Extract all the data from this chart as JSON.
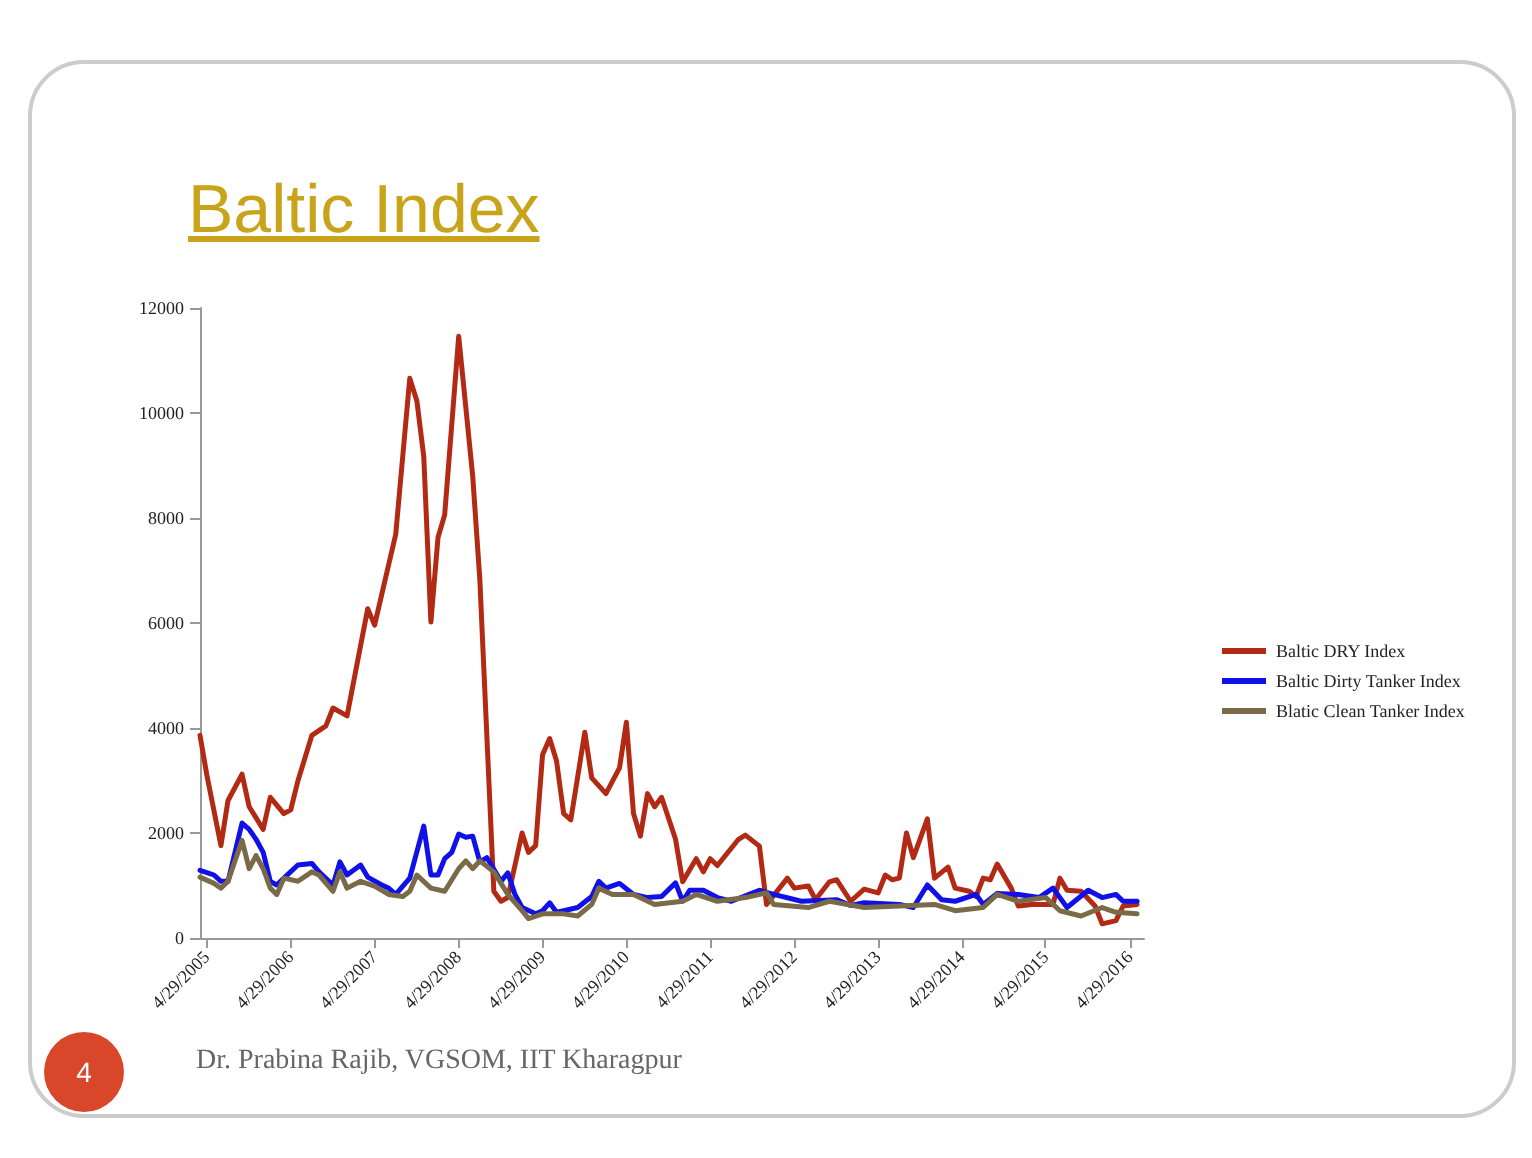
{
  "chart_data": {
    "type": "line",
    "title": "Baltic Index",
    "annotations": [
      "4",
      "Dr. Prabina Rajib, VGSOM, IIT Kharagpur"
    ],
    "series": [
      {
        "name": "Baltic DRY Index",
        "color": "#b22a14",
        "x": [
          "2005-04",
          "2005-05",
          "2005-07",
          "2005-08",
          "2005-10",
          "2005-11",
          "2006-01",
          "2006-02",
          "2006-04",
          "2006-05",
          "2006-06",
          "2006-08",
          "2006-10",
          "2006-11",
          "2007-01",
          "2007-04",
          "2007-05",
          "2007-08",
          "2007-10",
          "2007-11",
          "2007-12",
          "2008-01",
          "2008-02",
          "2008-03",
          "2008-05",
          "2008-07",
          "2008-08",
          "2008-10",
          "2008-11",
          "2008-12",
          "2009-02",
          "2009-03",
          "2009-04",
          "2009-05",
          "2009-06",
          "2009-07",
          "2009-08",
          "2009-09",
          "2009-11",
          "2009-12",
          "2010-02",
          "2010-04",
          "2010-05",
          "2010-06",
          "2010-07",
          "2010-08",
          "2010-09",
          "2010-10",
          "2010-12",
          "2011-01",
          "2011-03",
          "2011-04",
          "2011-05",
          "2011-06",
          "2011-09",
          "2011-10",
          "2011-12",
          "2012-01",
          "2012-04",
          "2012-05",
          "2012-07",
          "2012-08",
          "2012-10",
          "2012-11",
          "2013-01",
          "2013-03",
          "2013-05",
          "2013-06",
          "2013-07",
          "2013-08",
          "2013-09",
          "2013-10",
          "2013-12",
          "2014-01",
          "2014-03",
          "2014-04",
          "2014-06",
          "2014-07",
          "2014-08",
          "2014-09",
          "2014-10",
          "2014-12",
          "2015-01",
          "2015-03",
          "2015-06",
          "2015-07",
          "2015-08",
          "2015-10",
          "2015-12",
          "2016-01",
          "2016-03",
          "2016-04",
          "2016-06"
        ],
        "values": [
          3860,
          3100,
          1760,
          2620,
          3120,
          2500,
          2070,
          2680,
          2370,
          2440,
          2990,
          3860,
          4040,
          4380,
          4230,
          6270,
          5960,
          7690,
          10660,
          10230,
          9170,
          6020,
          7630,
          8060,
          11460,
          8800,
          6830,
          890,
          700,
          770,
          2000,
          1630,
          1760,
          3490,
          3800,
          3370,
          2370,
          2250,
          3920,
          3050,
          2750,
          3240,
          4110,
          2370,
          1940,
          2750,
          2500,
          2680,
          1880,
          1070,
          1510,
          1260,
          1510,
          1380,
          1880,
          1960,
          1750,
          640,
          1140,
          950,
          990,
          730,
          1070,
          1110,
          700,
          930,
          860,
          1200,
          1110,
          1140,
          2000,
          1530,
          2270,
          1140,
          1350,
          950,
          890,
          790,
          1140,
          1110,
          1410,
          950,
          610,
          640,
          640,
          1140,
          910,
          890,
          610,
          270,
          330,
          610,
          640
        ]
      },
      {
        "name": "Baltic Dirty Tanker Index",
        "color": "#1010e8",
        "x": [
          "2005-04",
          "2005-06",
          "2005-07",
          "2005-08",
          "2005-10",
          "2005-11",
          "2005-12",
          "2006-01",
          "2006-02",
          "2006-03",
          "2006-04",
          "2006-06",
          "2006-08",
          "2006-09",
          "2006-11",
          "2006-12",
          "2007-01",
          "2007-03",
          "2007-04",
          "2007-06",
          "2007-07",
          "2007-08",
          "2007-10",
          "2007-12",
          "2008-01",
          "2008-02",
          "2008-03",
          "2008-04",
          "2008-05",
          "2008-06",
          "2008-07",
          "2008-08",
          "2008-09",
          "2008-11",
          "2008-12",
          "2009-01",
          "2009-02",
          "2009-04",
          "2009-05",
          "2009-06",
          "2009-07",
          "2009-08",
          "2009-10",
          "2009-12",
          "2010-01",
          "2010-02",
          "2010-04",
          "2010-06",
          "2010-08",
          "2010-10",
          "2010-12",
          "2011-01",
          "2011-02",
          "2011-04",
          "2011-06",
          "2011-08",
          "2011-12",
          "2012-02",
          "2012-06",
          "2012-11",
          "2013-01",
          "2013-03",
          "2013-08",
          "2013-10",
          "2013-12",
          "2014-02",
          "2014-04",
          "2014-07",
          "2014-08",
          "2014-10",
          "2015-01",
          "2015-04",
          "2015-06",
          "2015-08",
          "2015-11",
          "2016-01",
          "2016-03",
          "2016-04",
          "2016-06"
        ],
        "values": [
          1290,
          1200,
          1080,
          1080,
          2190,
          2070,
          1880,
          1630,
          1080,
          1010,
          1140,
          1390,
          1420,
          1260,
          1010,
          1450,
          1200,
          1390,
          1160,
          1010,
          950,
          830,
          1140,
          2130,
          1200,
          1200,
          1510,
          1630,
          1980,
          1920,
          1940,
          1450,
          1530,
          1080,
          1240,
          830,
          580,
          460,
          520,
          670,
          490,
          520,
          580,
          790,
          1080,
          950,
          1040,
          830,
          770,
          790,
          1050,
          700,
          910,
          910,
          770,
          700,
          910,
          830,
          700,
          730,
          620,
          670,
          640,
          580,
          1010,
          730,
          700,
          830,
          640,
          850,
          830,
          770,
          950,
          580,
          910,
          770,
          830,
          700,
          700
        ]
      },
      {
        "name": "Blatic Clean Tanker Index",
        "color": "#7a6a48",
        "x": [
          "2005-04",
          "2005-06",
          "2005-07",
          "2005-08",
          "2005-10",
          "2005-11",
          "2005-12",
          "2006-01",
          "2006-02",
          "2006-03",
          "2006-04",
          "2006-06",
          "2006-08",
          "2006-09",
          "2006-11",
          "2006-12",
          "2007-01",
          "2007-03",
          "2007-05",
          "2007-07",
          "2007-09",
          "2007-10",
          "2007-11",
          "2008-01",
          "2008-03",
          "2008-05",
          "2008-06",
          "2008-07",
          "2008-08",
          "2008-10",
          "2008-12",
          "2009-02",
          "2009-03",
          "2009-05",
          "2009-07",
          "2009-08",
          "2009-10",
          "2009-12",
          "2010-01",
          "2010-03",
          "2010-06",
          "2010-09",
          "2011-01",
          "2011-03",
          "2011-06",
          "2011-10",
          "2012-01",
          "2012-02",
          "2012-07",
          "2012-10",
          "2013-03",
          "2013-08",
          "2014-01",
          "2014-04",
          "2014-08",
          "2014-10",
          "2015-01",
          "2015-05",
          "2015-07",
          "2015-10",
          "2016-01",
          "2016-03",
          "2016-06"
        ],
        "values": [
          1160,
          1040,
          950,
          1080,
          1860,
          1320,
          1570,
          1320,
          950,
          830,
          1140,
          1080,
          1260,
          1200,
          890,
          1260,
          950,
          1080,
          990,
          830,
          790,
          890,
          1200,
          950,
          890,
          1320,
          1470,
          1320,
          1470,
          1260,
          830,
          520,
          370,
          460,
          460,
          460,
          420,
          640,
          950,
          830,
          830,
          640,
          700,
          830,
          700,
          770,
          860,
          640,
          580,
          700,
          580,
          610,
          640,
          520,
          580,
          830,
          700,
          770,
          520,
          420,
          580,
          490,
          460
        ]
      }
    ],
    "xlim": [
      "2005-04",
      "2016-07"
    ],
    "xticks": [
      {
        "value": "2005-04-29",
        "label": "4/29/2005"
      },
      {
        "value": "2006-04-29",
        "label": "4/29/2006"
      },
      {
        "value": "2007-04-29",
        "label": "4/29/2007"
      },
      {
        "value": "2008-04-29",
        "label": "4/29/2008"
      },
      {
        "value": "2009-04-29",
        "label": "4/29/2009"
      },
      {
        "value": "2010-04-29",
        "label": "4/29/2010"
      },
      {
        "value": "2011-04-29",
        "label": "4/29/2011"
      },
      {
        "value": "2012-04-29",
        "label": "4/29/2012"
      },
      {
        "value": "2013-04-29",
        "label": "4/29/2013"
      },
      {
        "value": "2014-04-29",
        "label": "4/29/2014"
      },
      {
        "value": "2015-04-29",
        "label": "4/29/2015"
      },
      {
        "value": "2016-04-29",
        "label": "4/29/2016"
      }
    ],
    "ylim": [
      0,
      12000
    ],
    "yticks": [
      0,
      2000,
      4000,
      6000,
      8000,
      10000,
      12000
    ],
    "grid": false,
    "legend": "right",
    "marker": "none",
    "line_style": "solid"
  }
}
